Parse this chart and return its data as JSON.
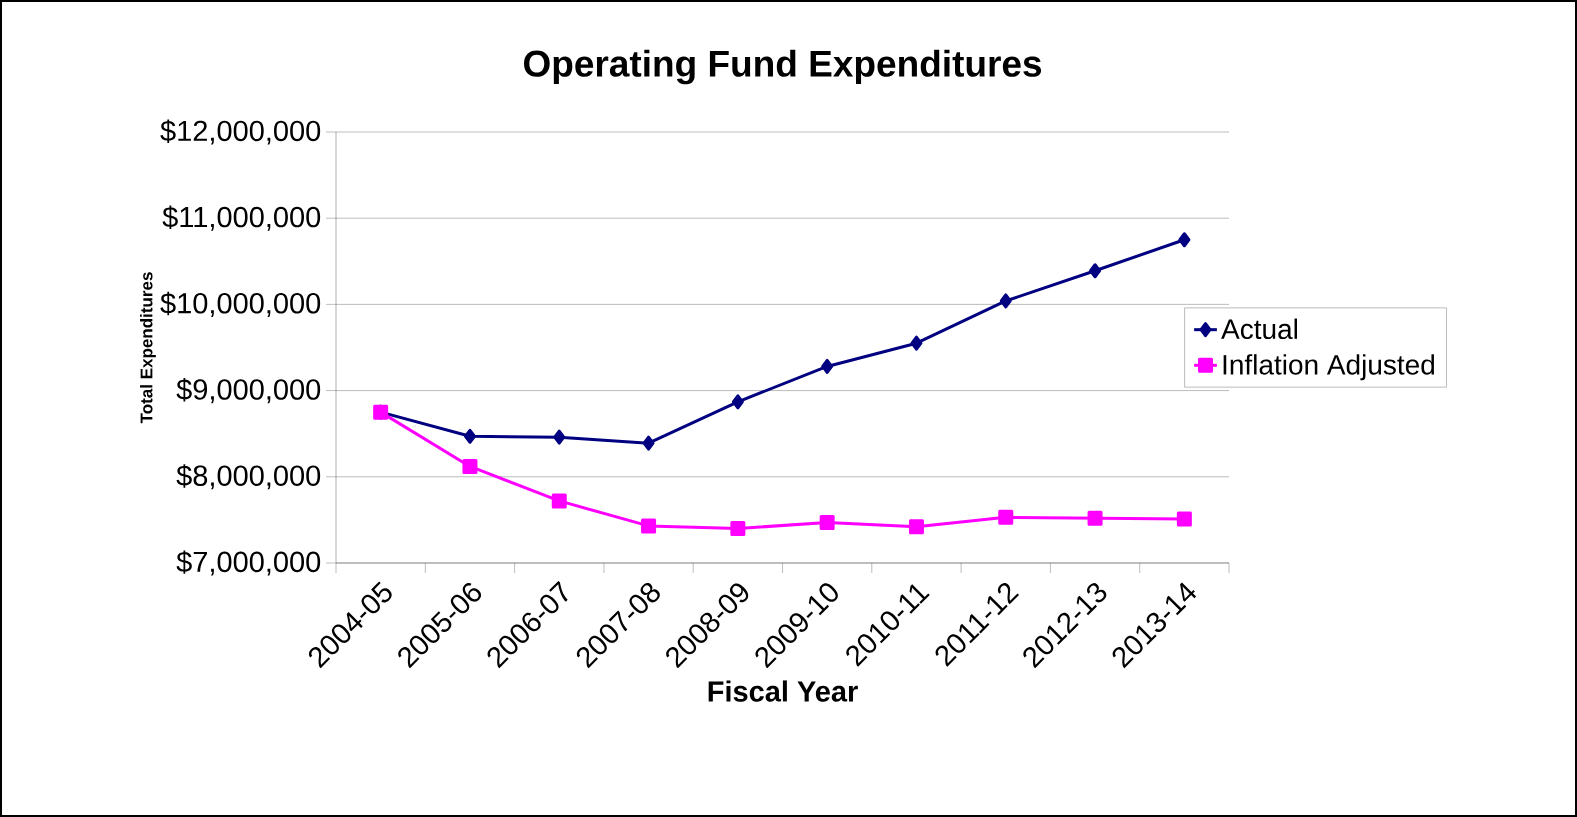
{
  "chart_data": {
    "type": "line",
    "title": "Operating Fund Expenditures",
    "xlabel": "Fiscal Year",
    "ylabel": "Total Expenditures",
    "categories": [
      "2004-05",
      "2005-06",
      "2006-07",
      "2007-08",
      "2008-09",
      "2009-10",
      "2010-11",
      "2011-12",
      "2012-13",
      "2013-14"
    ],
    "series": [
      {
        "name": "Actual",
        "color": "#000080",
        "marker": "diamond",
        "values": [
          8750000,
          8470000,
          8460000,
          8390000,
          8870000,
          9280000,
          9550000,
          10040000,
          10390000,
          10750000
        ]
      },
      {
        "name": "Inflation Adjusted",
        "color": "#ff00ff",
        "marker": "square",
        "values": [
          8750000,
          8120000,
          7720000,
          7430000,
          7400000,
          7470000,
          7420000,
          7530000,
          7520000,
          7510000
        ]
      }
    ],
    "ylim": [
      7000000,
      12000000
    ],
    "yticks": [
      {
        "value": 7000000,
        "label": "$7,000,000"
      },
      {
        "value": 8000000,
        "label": "$8,000,000"
      },
      {
        "value": 9000000,
        "label": "$9,000,000"
      },
      {
        "value": 10000000,
        "label": "$10,000,000"
      },
      {
        "value": 11000000,
        "label": "$11,000,000"
      },
      {
        "value": 12000000,
        "label": "$12,000,000"
      }
    ],
    "grid": "y",
    "legend": "right",
    "line_style": "solid"
  }
}
